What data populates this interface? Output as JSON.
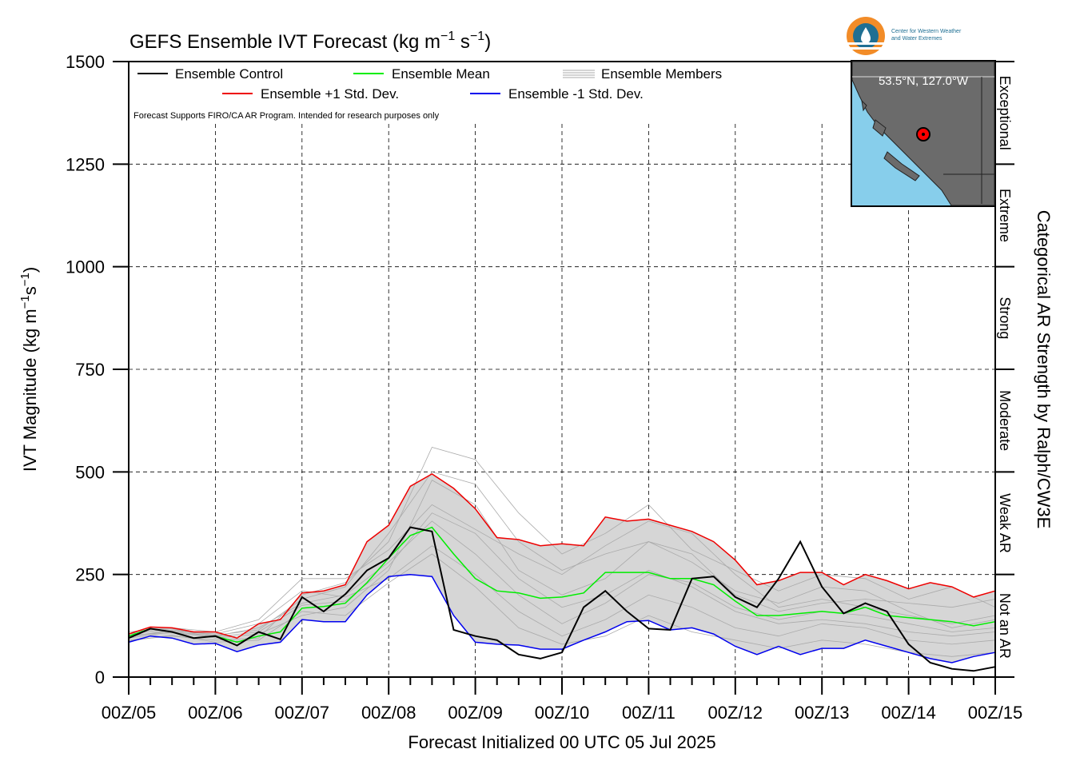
{
  "logo": {
    "line1": "Center for Western Weather",
    "line2": "and Water Extremes",
    "colors": {
      "ring": "#f28c28",
      "inner": "#1f6f93",
      "drop": "#ffffff"
    }
  },
  "chart_data": {
    "type": "line",
    "title_text": "GEFS Ensemble IVT Forecast (kg m",
    "title_exp1": "−1",
    "title_mid": " s",
    "title_exp2": "−1",
    "title_end": ")",
    "ylabel_text": "IVT Magnitude (kg m",
    "ylabel_exp1": "−1",
    "ylabel_mid": "s",
    "ylabel_exp2": "−1",
    "ylabel_end": ")",
    "right_label": "Categorical AR Strength by Ralph/CW3E",
    "xlabel": "Forecast Initialized 00 UTC 05 Jul 2025",
    "note": "Forecast Supports FIRO/CA AR Program. Intended for research purposes only",
    "map_label": "53.5°N, 127.0°W",
    "ylim": [
      0,
      1500
    ],
    "xlim": [
      0,
      240
    ],
    "yticks": [
      0,
      250,
      500,
      750,
      1000,
      1250,
      1500
    ],
    "ytick_labels": [
      "0",
      "250",
      "500",
      "750",
      "1000",
      "1250",
      "1500"
    ],
    "xticks": [
      0,
      24,
      48,
      72,
      96,
      120,
      144,
      168,
      192,
      216,
      240
    ],
    "xtick_labels": [
      "00Z/05",
      "00Z/06",
      "00Z/07",
      "00Z/08",
      "00Z/09",
      "00Z/10",
      "00Z/11",
      "00Z/12",
      "00Z/13",
      "00Z/14",
      "00Z/15"
    ],
    "grid": true,
    "legend_position": "top-left",
    "legend": [
      {
        "label": "Ensemble Control",
        "color": "#000000"
      },
      {
        "label": "Ensemble Mean",
        "color": "#00ee00"
      },
      {
        "label": "Ensemble Members",
        "color": "#aaaaaa"
      },
      {
        "label": "Ensemble +1 Std. Dev.",
        "color": "#ee0000"
      },
      {
        "label": "Ensemble -1 Std. Dev.",
        "color": "#0000ee"
      }
    ],
    "categories_right": [
      {
        "label": "Not an AR",
        "range": [
          0,
          250
        ]
      },
      {
        "label": "Weak AR",
        "range": [
          250,
          500
        ]
      },
      {
        "label": "Moderate",
        "range": [
          500,
          750
        ]
      },
      {
        "label": "Strong",
        "range": [
          750,
          1000
        ]
      },
      {
        "label": "Extreme",
        "range": [
          1000,
          1250
        ]
      },
      {
        "label": "Exceptional",
        "range": [
          1250,
          1500
        ]
      }
    ],
    "series": [
      {
        "name": "Ensemble Control",
        "color": "#000000",
        "x": [
          0,
          6,
          12,
          18,
          24,
          30,
          36,
          42,
          48,
          54,
          60,
          66,
          72,
          78,
          84,
          90,
          96,
          102,
          108,
          114,
          120,
          126,
          132,
          138,
          144,
          150,
          156,
          162,
          168,
          174,
          180,
          186,
          192,
          198,
          204,
          210,
          216,
          222,
          228,
          234,
          240
        ],
        "y": [
          95,
          118,
          110,
          95,
          100,
          77,
          110,
          92,
          195,
          160,
          202,
          260,
          290,
          365,
          355,
          115,
          100,
          90,
          55,
          45,
          60,
          170,
          210,
          160,
          118,
          115,
          240,
          245,
          195,
          170,
          240,
          330,
          220,
          155,
          180,
          160,
          80,
          35,
          20,
          15,
          25
        ]
      },
      {
        "name": "Ensemble Mean",
        "color": "#00ee00",
        "x": [
          0,
          6,
          12,
          18,
          24,
          30,
          36,
          42,
          48,
          54,
          60,
          66,
          72,
          78,
          84,
          90,
          96,
          102,
          108,
          114,
          120,
          126,
          132,
          138,
          144,
          150,
          156,
          162,
          168,
          174,
          180,
          186,
          192,
          198,
          204,
          210,
          216,
          222,
          228,
          234,
          240
        ],
        "y": [
          100,
          118,
          110,
          95,
          100,
          85,
          100,
          110,
          168,
          172,
          180,
          230,
          290,
          345,
          365,
          300,
          240,
          210,
          205,
          192,
          195,
          205,
          255,
          255,
          255,
          240,
          240,
          225,
          185,
          150,
          150,
          155,
          160,
          155,
          170,
          150,
          145,
          140,
          135,
          125,
          135
        ]
      },
      {
        "name": "Ensemble +1 Std. Dev.",
        "color": "#ee0000",
        "x": [
          0,
          6,
          12,
          18,
          24,
          30,
          36,
          42,
          48,
          54,
          60,
          66,
          72,
          78,
          84,
          90,
          96,
          102,
          108,
          114,
          120,
          126,
          132,
          138,
          144,
          150,
          156,
          162,
          168,
          174,
          180,
          186,
          192,
          198,
          204,
          210,
          216,
          222,
          228,
          234,
          240
        ],
        "y": [
          105,
          122,
          120,
          110,
          110,
          95,
          130,
          140,
          205,
          210,
          225,
          330,
          370,
          465,
          495,
          460,
          410,
          340,
          335,
          320,
          325,
          320,
          390,
          380,
          385,
          370,
          355,
          330,
          285,
          225,
          235,
          255,
          255,
          225,
          250,
          235,
          215,
          230,
          220,
          195,
          210
        ]
      },
      {
        "name": "Ensemble -1 Std. Dev.",
        "color": "#0000ee",
        "x": [
          0,
          6,
          12,
          18,
          24,
          30,
          36,
          42,
          48,
          54,
          60,
          66,
          72,
          78,
          84,
          90,
          96,
          102,
          108,
          114,
          120,
          126,
          132,
          138,
          144,
          150,
          156,
          162,
          168,
          174,
          180,
          186,
          192,
          198,
          204,
          210,
          216,
          222,
          228,
          234,
          240
        ],
        "y": [
          85,
          100,
          95,
          80,
          82,
          62,
          78,
          85,
          140,
          135,
          135,
          200,
          245,
          250,
          245,
          150,
          85,
          80,
          78,
          68,
          68,
          90,
          110,
          135,
          138,
          115,
          120,
          105,
          75,
          55,
          75,
          55,
          70,
          70,
          90,
          75,
          60,
          45,
          35,
          50,
          60
        ]
      }
    ],
    "members": [
      {
        "x": [
          0,
          12,
          24,
          36,
          48,
          60,
          72,
          84,
          96,
          108,
          120,
          132,
          144,
          156,
          168,
          180,
          192,
          204,
          216,
          228,
          240
        ],
        "y": [
          95,
          110,
          100,
          120,
          180,
          200,
          280,
          380,
          300,
          200,
          130,
          180,
          250,
          230,
          170,
          140,
          160,
          150,
          130,
          110,
          120
        ]
      },
      {
        "x": [
          0,
          12,
          24,
          36,
          48,
          60,
          72,
          84,
          96,
          108,
          120,
          132,
          144,
          156,
          168,
          180,
          192,
          204,
          216,
          228,
          240
        ],
        "y": [
          105,
          118,
          95,
          105,
          150,
          170,
          260,
          480,
          420,
          260,
          200,
          240,
          330,
          280,
          210,
          180,
          220,
          210,
          160,
          120,
          140
        ]
      },
      {
        "x": [
          0,
          12,
          24,
          36,
          48,
          60,
          72,
          84,
          96,
          108,
          120,
          132,
          144,
          156,
          168,
          180,
          192,
          204,
          216,
          228,
          240
        ],
        "y": [
          90,
          100,
          90,
          95,
          200,
          230,
          330,
          560,
          530,
          400,
          300,
          350,
          420,
          310,
          260,
          210,
          250,
          240,
          190,
          220,
          170
        ]
      },
      {
        "x": [
          0,
          12,
          24,
          36,
          48,
          60,
          72,
          84,
          96,
          108,
          120,
          132,
          144,
          156,
          168,
          180,
          192,
          204,
          216,
          228,
          240
        ],
        "y": [
          100,
          112,
          105,
          130,
          210,
          195,
          240,
          320,
          250,
          160,
          100,
          140,
          200,
          170,
          120,
          100,
          130,
          120,
          90,
          80,
          90
        ]
      },
      {
        "x": [
          0,
          12,
          24,
          36,
          48,
          60,
          72,
          84,
          96,
          108,
          120,
          132,
          144,
          156,
          168,
          180,
          192,
          204,
          216,
          228,
          240
        ],
        "y": [
          110,
          120,
          110,
          140,
          240,
          240,
          310,
          420,
          360,
          300,
          250,
          320,
          380,
          350,
          250,
          170,
          190,
          170,
          150,
          130,
          150
        ]
      },
      {
        "x": [
          0,
          12,
          24,
          36,
          48,
          60,
          72,
          84,
          96,
          108,
          120,
          132,
          144,
          156,
          168,
          180,
          192,
          204,
          216,
          228,
          240
        ],
        "y": [
          88,
          102,
          85,
          90,
          160,
          150,
          230,
          300,
          220,
          120,
          80,
          100,
          150,
          110,
          90,
          70,
          90,
          80,
          60,
          50,
          60
        ]
      },
      {
        "x": [
          0,
          12,
          24,
          36,
          48,
          60,
          72,
          84,
          96,
          108,
          120,
          132,
          144,
          156,
          168,
          180,
          192,
          204,
          216,
          228,
          240
        ],
        "y": [
          98,
          115,
          102,
          115,
          190,
          220,
          350,
          500,
          470,
          330,
          260,
          300,
          330,
          300,
          200,
          160,
          180,
          190,
          180,
          170,
          190
        ]
      },
      {
        "x": [
          0,
          12,
          24,
          36,
          48,
          60,
          72,
          84,
          96,
          108,
          120,
          132,
          144,
          156,
          168,
          180,
          192,
          204,
          216,
          228,
          240
        ],
        "y": [
          102,
          108,
          98,
          110,
          175,
          185,
          270,
          400,
          350,
          240,
          170,
          200,
          260,
          220,
          160,
          130,
          140,
          130,
          110,
          100,
          110
        ]
      }
    ]
  }
}
